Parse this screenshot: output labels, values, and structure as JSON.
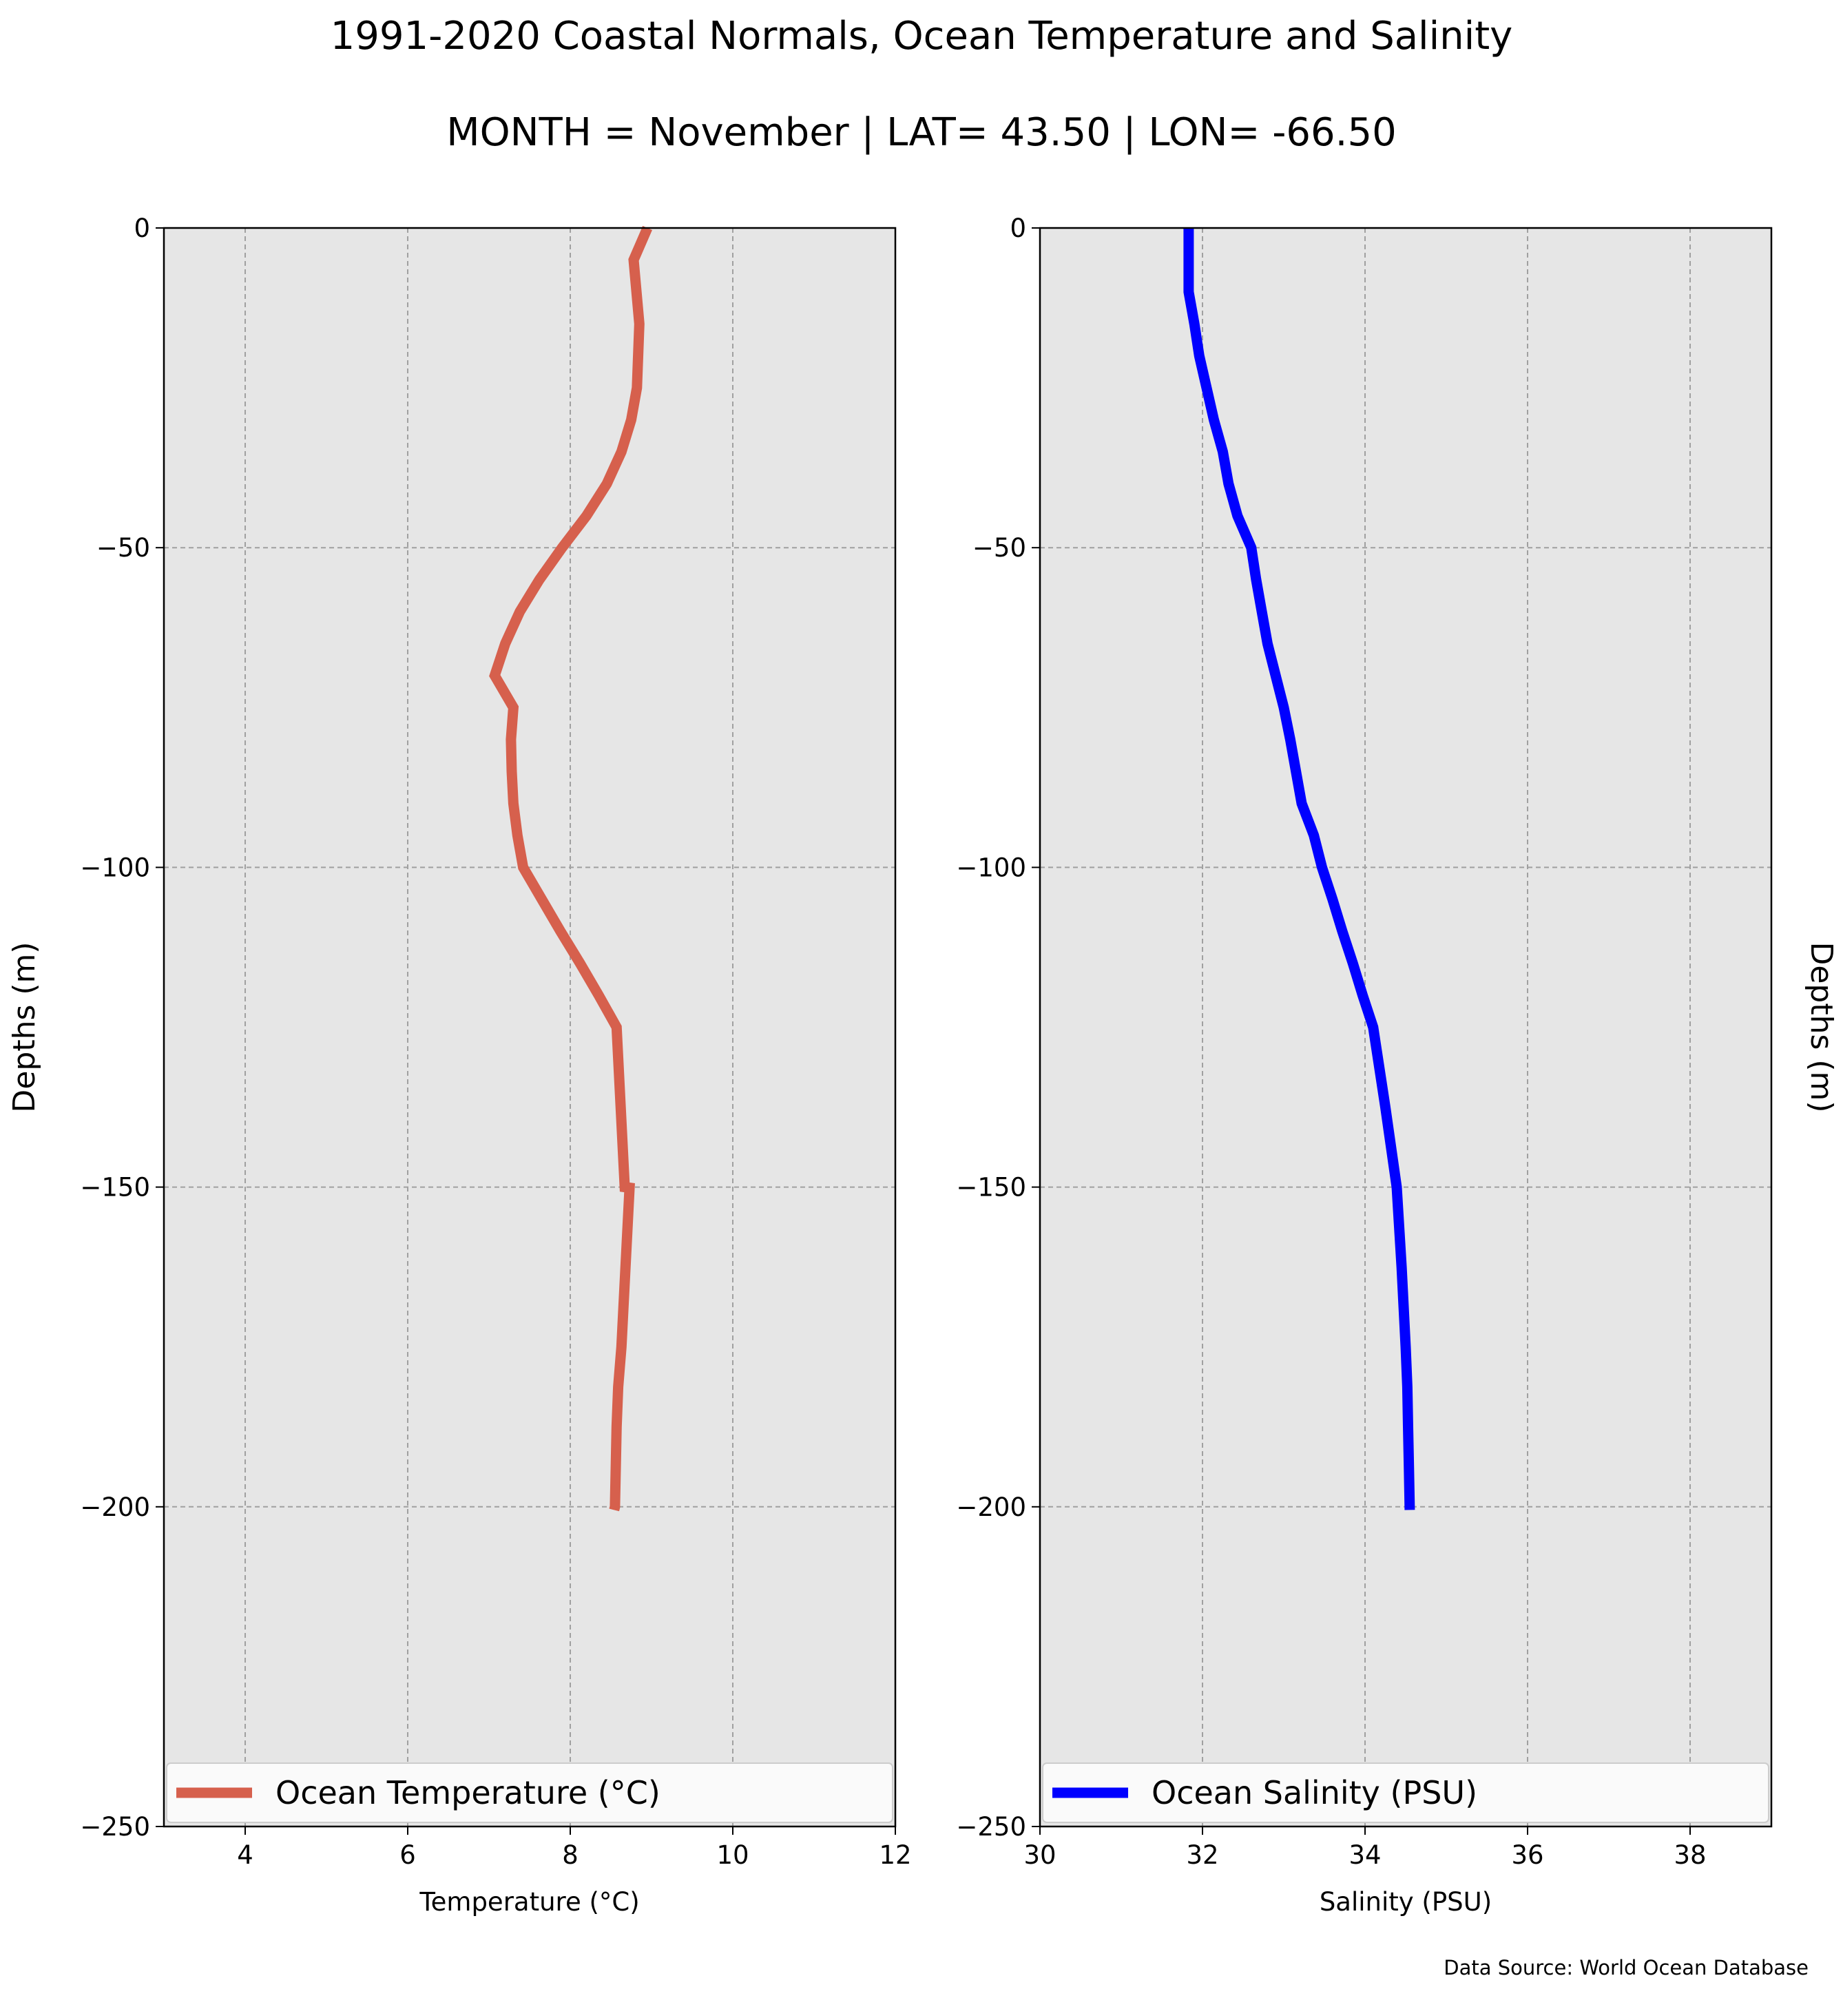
{
  "title": "1991-2020 Coastal Normals, Ocean Temperature and Salinity",
  "subtitle": "MONTH = November | LAT= 43.50 | LON= -66.50",
  "source": "Data Source: World Ocean Database",
  "chart_data": [
    {
      "type": "line",
      "xlabel": "Temperature (°C)",
      "ylabel": "Depths (m)",
      "xlim": [
        3,
        12
      ],
      "ylim": [
        -250,
        0
      ],
      "xticks": [
        4,
        6,
        8,
        10,
        12
      ],
      "yticks": [
        0,
        -50,
        -100,
        -150,
        -200,
        -250
      ],
      "grid": true,
      "legend_position": "bottom",
      "color": "#d6604d",
      "series": [
        {
          "name": "Ocean Temperature (°C)",
          "x": [
            8.95,
            8.78,
            8.85,
            8.82,
            8.75,
            8.63,
            8.45,
            8.2,
            7.9,
            7.62,
            7.38,
            7.2,
            7.07,
            7.3,
            7.27,
            7.28,
            7.3,
            7.35,
            7.42,
            7.65,
            7.88,
            8.12,
            8.35,
            8.57,
            8.62,
            8.67,
            8.73,
            8.68,
            8.63,
            8.59,
            8.57,
            8.56,
            8.55,
            8.54
          ],
          "y": [
            0,
            -5,
            -15,
            -25,
            -30,
            -35,
            -40,
            -45,
            -50,
            -55,
            -60,
            -65,
            -70,
            -75,
            -80,
            -85,
            -90,
            -95,
            -100,
            -105,
            -110,
            -115,
            -120,
            -125,
            -137.5,
            -150,
            -150.1,
            -162.5,
            -175,
            -181.25,
            -187.5,
            -193.75,
            -200,
            -200.5
          ]
        }
      ]
    },
    {
      "type": "line",
      "xlabel": "Salinity (PSU)",
      "ylabel": "Depths (m)",
      "xlim": [
        30,
        39
      ],
      "ylim": [
        -250,
        0
      ],
      "xticks": [
        30,
        32,
        34,
        36,
        38
      ],
      "yticks": [
        0,
        -50,
        -100,
        -150,
        -200,
        -250
      ],
      "grid": true,
      "legend_position": "bottom",
      "color": "#0000ff",
      "series": [
        {
          "name": "Ocean Salinity (PSU)",
          "x": [
            31.83,
            31.83,
            31.83,
            31.9,
            31.96,
            32.05,
            32.14,
            32.25,
            32.32,
            32.43,
            32.6,
            32.66,
            32.73,
            32.8,
            33.0,
            33.08,
            33.22,
            33.37,
            33.47,
            33.6,
            33.72,
            33.85,
            33.97,
            34.1,
            34.25,
            34.39,
            34.45,
            34.5,
            34.52,
            34.53,
            34.54,
            34.55
          ],
          "y": [
            0,
            -5,
            -10,
            -15,
            -20,
            -25,
            -30,
            -35,
            -40,
            -45,
            -50,
            -55,
            -60,
            -65,
            -75,
            -80,
            -90,
            -95,
            -100,
            -105,
            -110,
            -115,
            -120,
            -125,
            -137.5,
            -150,
            -162.5,
            -175,
            -181.25,
            -187.5,
            -193.75,
            -200.5
          ]
        }
      ]
    }
  ]
}
